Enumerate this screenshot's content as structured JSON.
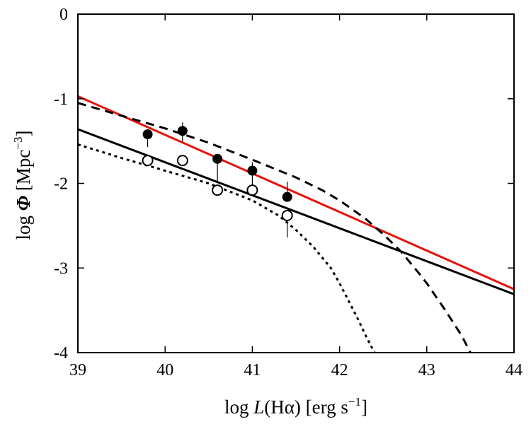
{
  "chart_data": {
    "type": "line",
    "xlabel": {
      "prefix": "log ",
      "var": "L",
      "paren": "(H",
      "greek": "α",
      "close": ")",
      "units": " [erg s",
      "exp": "−1",
      "end": "]"
    },
    "ylabel": {
      "prefix": "log ",
      "var": "Φ",
      "units": "  [Mpc",
      "exp": "−3",
      "end": "]"
    },
    "xlim": [
      39,
      44
    ],
    "ylim": [
      -4,
      0
    ],
    "x_ticks": [
      39,
      40,
      41,
      42,
      43,
      44
    ],
    "x_tick_labels": [
      "39",
      "40",
      "41",
      "42",
      "43",
      "44"
    ],
    "y_ticks": [
      0,
      -1,
      -2,
      -3,
      -4
    ],
    "y_tick_labels": [
      "0",
      "-1",
      "-2",
      "-3",
      "-4"
    ],
    "series": [
      {
        "name": "filled-points",
        "marker": "filled-circle",
        "points": [
          {
            "x": 39.8,
            "y": -1.42,
            "err_lo": 0.15,
            "err_hi": 0.0
          },
          {
            "x": 40.2,
            "y": -1.38,
            "err_lo": 0.13,
            "err_hi": 0.1
          },
          {
            "x": 40.6,
            "y": -1.71,
            "err_lo": 0.27,
            "err_hi": 0.0
          },
          {
            "x": 41.0,
            "y": -1.85,
            "err_lo": 0.17,
            "err_hi": 0.1
          },
          {
            "x": 41.4,
            "y": -2.16,
            "err_lo": 0.0,
            "err_hi": 0.18
          }
        ]
      },
      {
        "name": "open-points",
        "marker": "open-circle",
        "points": [
          {
            "x": 39.8,
            "y": -1.73,
            "err_lo": 0.0,
            "err_hi": 0.0
          },
          {
            "x": 40.2,
            "y": -1.73,
            "err_lo": 0.0,
            "err_hi": 0.0
          },
          {
            "x": 40.6,
            "y": -2.08,
            "err_lo": 0.0,
            "err_hi": 0.0
          },
          {
            "x": 41.0,
            "y": -2.08,
            "err_lo": 0.0,
            "err_hi": 0.0
          },
          {
            "x": 41.4,
            "y": -2.38,
            "err_lo": 0.26,
            "err_hi": 0.0
          }
        ]
      },
      {
        "name": "red-power-law",
        "style": "solid",
        "color": "#e8120c",
        "x": [
          39,
          44
        ],
        "y": [
          -0.97,
          -3.25
        ]
      },
      {
        "name": "black-power-law",
        "style": "solid",
        "color": "#000000",
        "x": [
          39,
          44
        ],
        "y": [
          -1.36,
          -3.31
        ]
      },
      {
        "name": "dashed-schechter",
        "style": "dashed",
        "color": "#000000",
        "x": [
          39.0,
          39.5,
          40.0,
          40.5,
          41.0,
          41.5,
          41.8,
          42.0,
          42.3,
          42.5,
          42.7,
          42.9,
          43.0,
          43.1,
          43.2,
          43.3,
          43.4,
          43.5
        ],
        "y": [
          -1.05,
          -1.2,
          -1.35,
          -1.52,
          -1.72,
          -1.93,
          -2.08,
          -2.2,
          -2.42,
          -2.6,
          -2.8,
          -3.05,
          -3.18,
          -3.33,
          -3.48,
          -3.64,
          -3.8,
          -4.0
        ]
      },
      {
        "name": "dotted-schechter",
        "style": "dotted",
        "color": "#000000",
        "x": [
          39.0,
          39.5,
          40.0,
          40.5,
          41.0,
          41.3,
          41.5,
          41.7,
          41.9,
          42.0,
          42.1,
          42.2,
          42.3,
          42.4
        ],
        "y": [
          -1.54,
          -1.7,
          -1.85,
          -2.0,
          -2.2,
          -2.38,
          -2.55,
          -2.75,
          -3.0,
          -3.18,
          -3.38,
          -3.58,
          -3.8,
          -4.0
        ]
      }
    ]
  }
}
